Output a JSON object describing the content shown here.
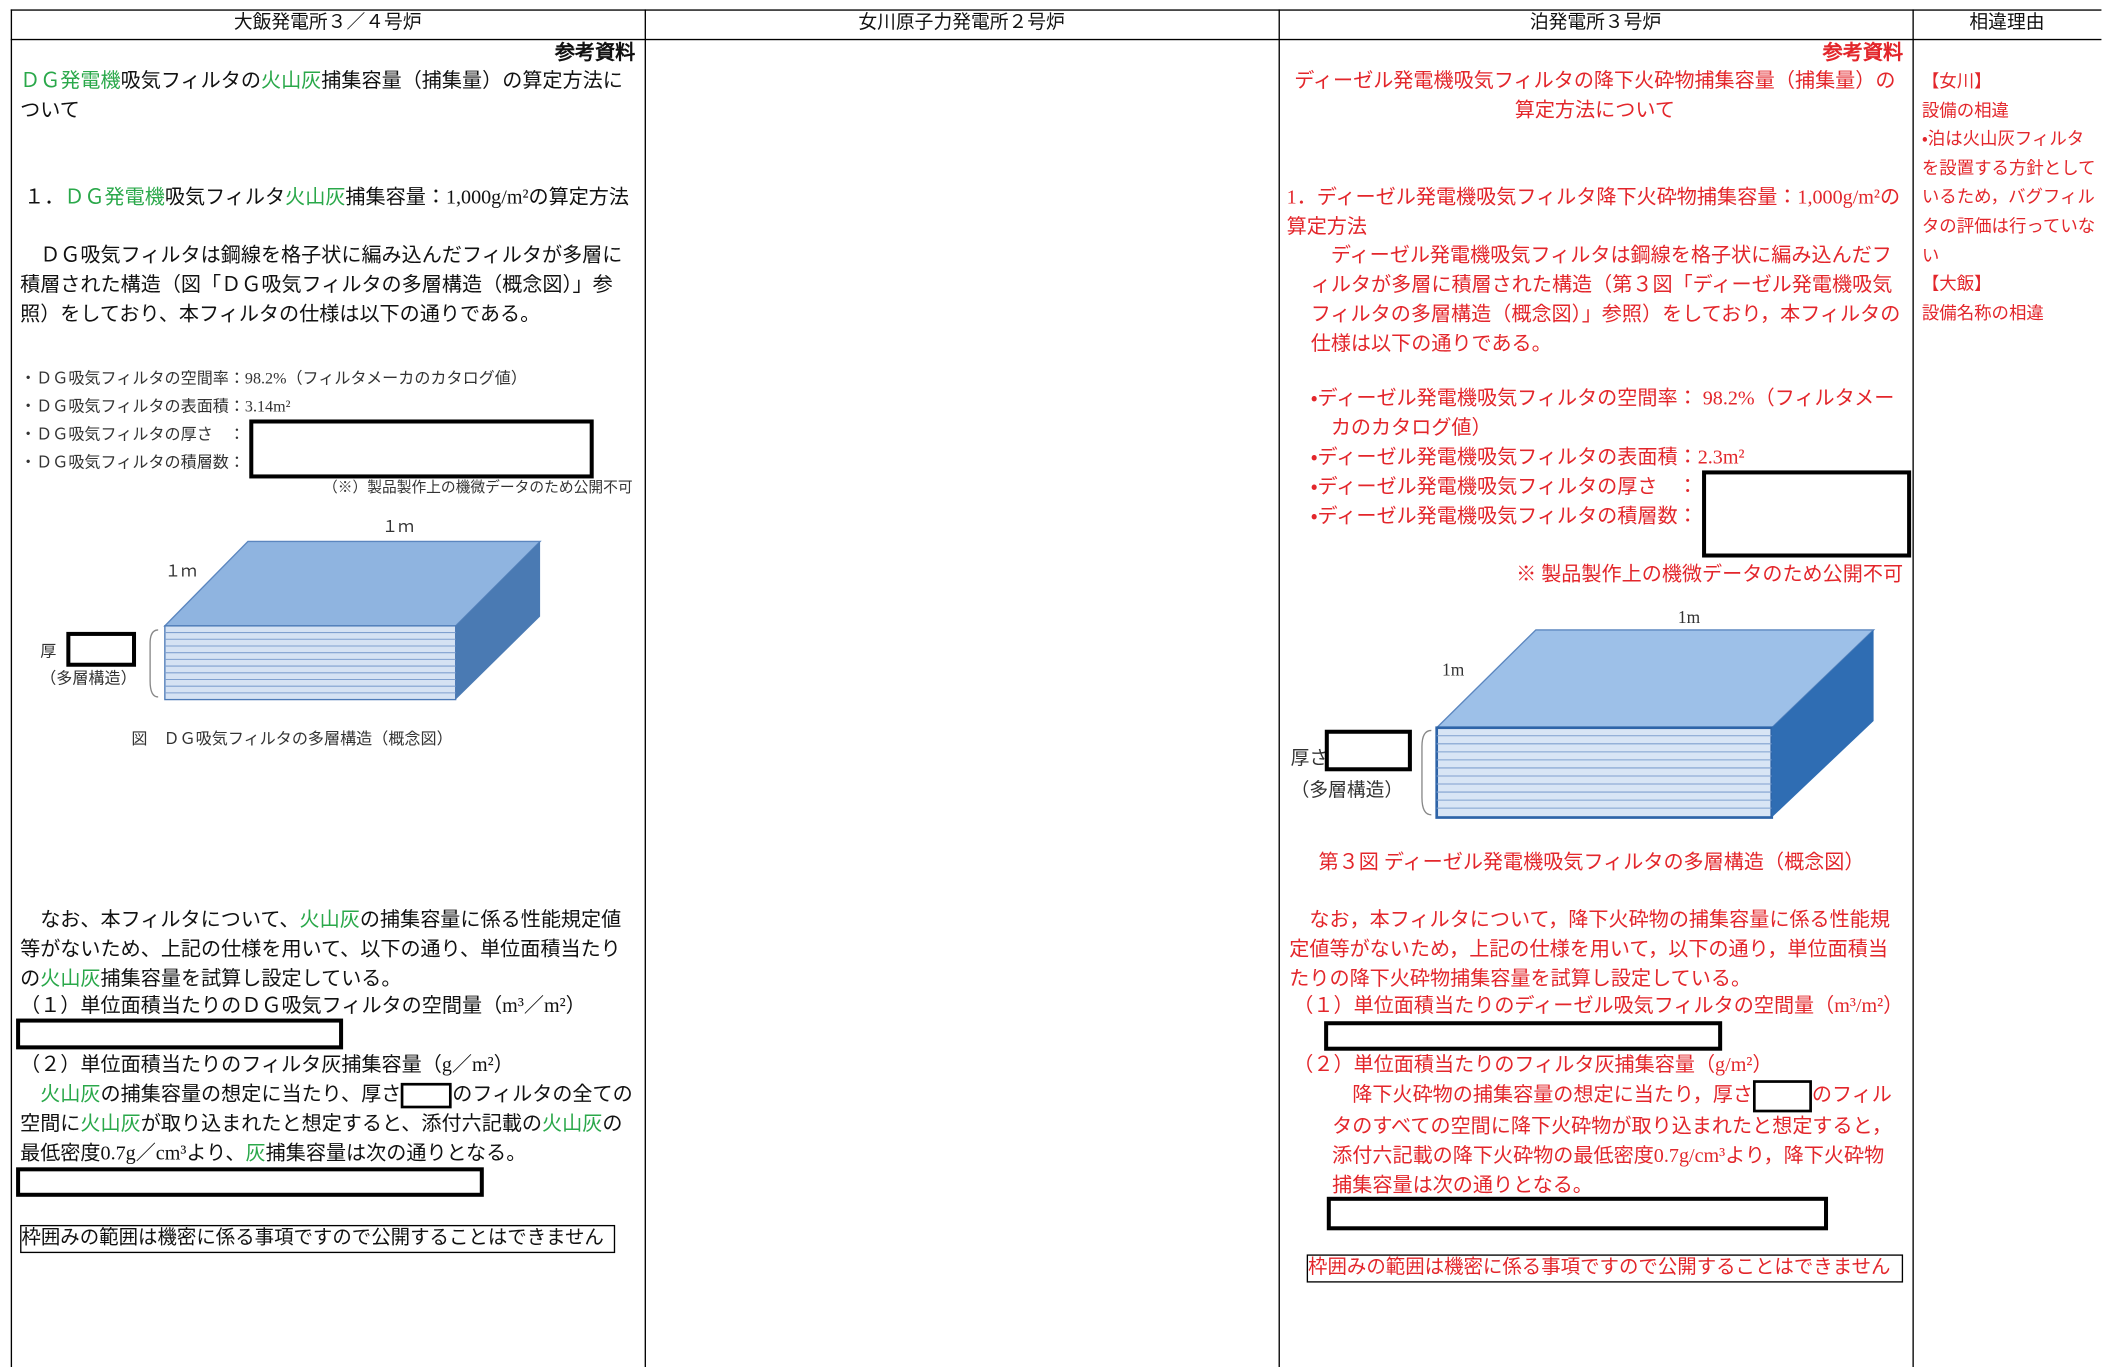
{
  "header": {
    "columns": [
      "大飯発電所３／４号炉",
      "女川原子力発電所２号炉",
      "泊発電所３号炉",
      "相違理由"
    ]
  },
  "left": {
    "reference": "参考資料",
    "title": [
      "ＤＧ発電機",
      "吸気フィルタの",
      "火山灰",
      "捕集容量（捕集量）の算定方法について"
    ],
    "section_1": [
      "１．",
      "ＤＧ発電機",
      "吸気フィルタ",
      "火山灰",
      "捕集容量：1,000g/m²の算定方法"
    ],
    "intro": "ＤＧ吸気フィルタは鋼線を格子状に編み込んだフィルタが多層に積層された構造（図「ＤＧ吸気フィルタの多層構造（概念図）」参照）をしており、本フィルタの仕様は以下の通りである。",
    "specs": [
      "・ＤＧ吸気フィルタの空間率：98.2%（フィルタメーカのカタログ値）",
      "・ＤＧ吸気フィルタの表面積：3.14m²",
      "・ＤＧ吸気フィルタの厚さ　：",
      "・ＤＧ吸気フィルタの積層数："
    ],
    "spec_note": "（※）製品製作上の機微データのため公開不可",
    "figure": {
      "width_label": "１ｍ",
      "depth_label": "１ｍ",
      "thickness_label": "厚",
      "layer_label": "（多層構造）",
      "caption": "図　ＤＧ吸気フィルタの多層構造（概念図）"
    },
    "note": [
      "なお、本フィルタについて、",
      "火山灰",
      "の捕集容量に係る性能規定値等がないため、上記の仕様を用いて、以下の通り、単位面積当たりの",
      "火山灰",
      "捕集容量を試算し設定している。"
    ],
    "item_1": "（１）単位面積当たりのＤＧ吸気フィルタの空間量（m³／m²）",
    "item_2": "（２）単位面積当たりのフィルタ灰捕集容量（g／m²）",
    "item_2_text": [
      "火山灰",
      "の捕集容量の想定に当たり、厚さ",
      "のフィルタの全ての空間に",
      "火山灰",
      "が取り込まれたと想定すると、添付六記載の",
      "火山灰",
      "の最低密度0.7g／cm³より、",
      "灰",
      "捕集容量は次の通りとなる。"
    ],
    "notice": "枠囲みの範囲は機密に係る事項ですので公開することはできません"
  },
  "right": {
    "reference": "参考資料",
    "title": "ディーゼル発電機吸気フィルタの降下火砕物捕集容量（捕集量）の算定方法について",
    "section_1": "1．ディーゼル発電機吸気フィルタ降下火砕物捕集容量：1,000g/m²の算定方法",
    "intro": "ディーゼル発電機吸気フィルタは鋼線を格子状に編み込んだフィルタが多層に積層された構造（第３図「ディーゼル発電機吸気フィルタの多層構造（概念図）」参照）をしており，本フィルタの仕様は以下の通りである。",
    "specs": [
      "・ディーゼル発電機吸気フィルタの空間率： 98.2%（フィルタメーカのカタログ値）",
      "・ディーゼル発電機吸気フィルタの表面積：2.3m²",
      "・ディーゼル発電機吸気フィルタの厚さ　：",
      "・ディーゼル発電機吸気フィルタの積層数："
    ],
    "spec_note": "※ 製品製作上の機微データのため公開不可",
    "figure": {
      "width_label": "1m",
      "depth_label": "1m",
      "thickness_label": "厚さ",
      "layer_label": "（多層構造）",
      "caption": "第３図 ディーゼル発電機吸気フィルタの多層構造（概念図）"
    },
    "note": "なお，本フィルタについて，降下火砕物の捕集容量に係る性能規定値等がないため，上記の仕様を用いて，以下の通り，単位面積当たりの降下火砕物捕集容量を試算し設定している。",
    "item_1": "（１）単位面積当たりのディーゼル吸気フィルタの空間量（m³/m²）",
    "item_2": "（２）単位面積当たりのフィルタ灰捕集容量（g/m²）",
    "item_2_text": [
      "降下火砕物の捕集容量の想定に当たり，厚さ",
      "のフィルタのすべての空間に降下火砕物が取り込まれたと想定すると，添付六記載の降下火砕物の最低密度0.7g/cm³より，降下火砕物捕集容量は次の通りとなる。"
    ],
    "notice": "枠囲みの範囲は機密に係る事項ですので公開することはできません"
  },
  "reasons": [
    "【女川】",
    "設備の相違",
    "・泊は火山灰フィルタを設置する方針としているため，バグフィルタの評価は行っていない",
    "【大飯】",
    "設備名称の相違"
  ]
}
